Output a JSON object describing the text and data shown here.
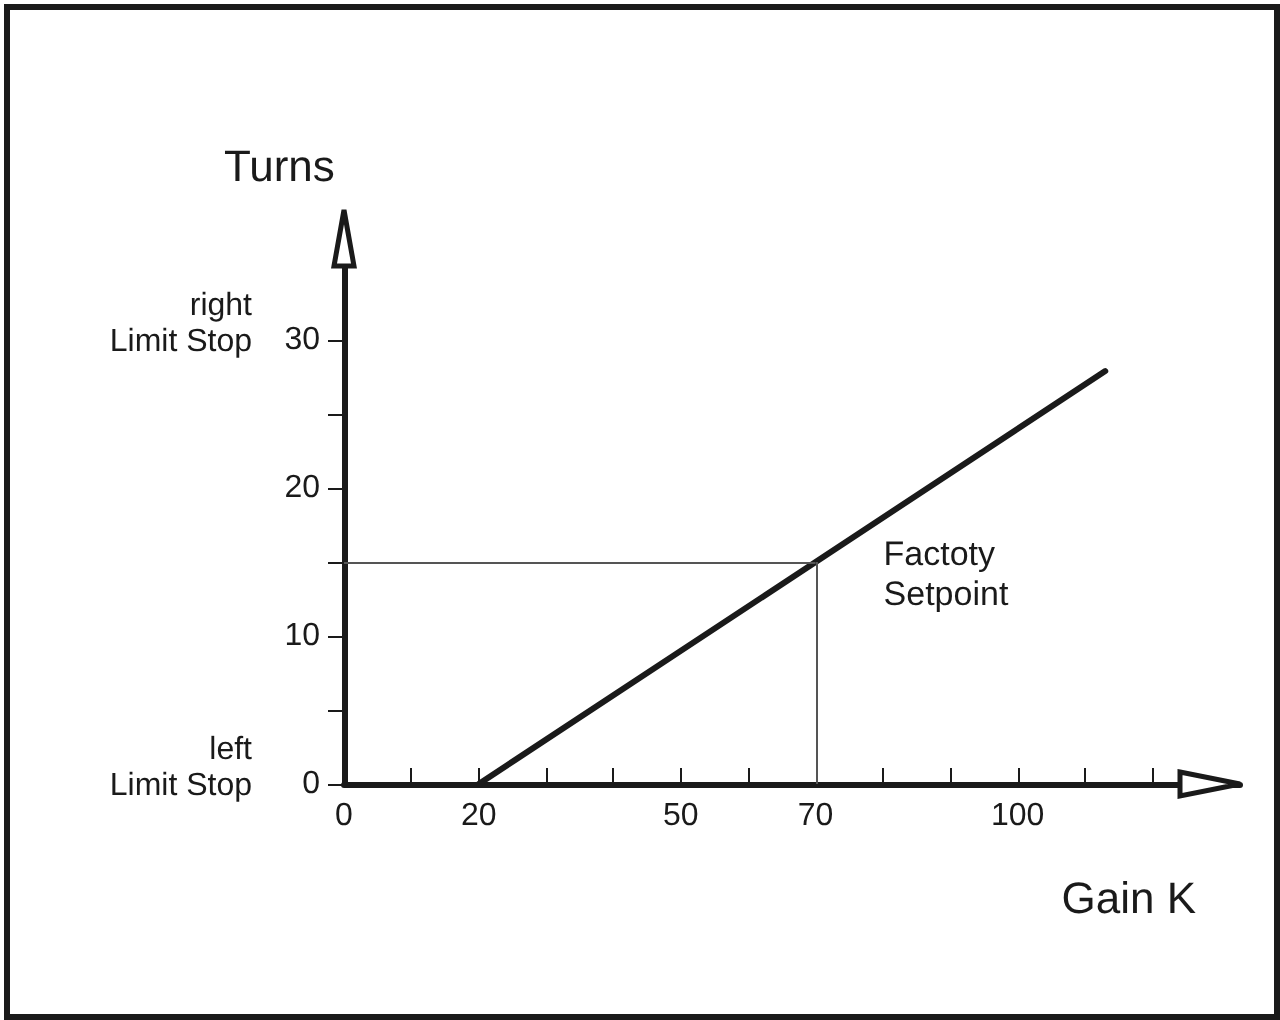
{
  "chart_data": {
    "type": "line",
    "xlabel": "Gain K",
    "ylabel": "Turns",
    "x": [
      20,
      113
    ],
    "values": [
      0,
      27.9
    ],
    "color": "#1a1a1a",
    "marker": "none",
    "line_style": "solid",
    "grid": false,
    "xlim": [
      0,
      133
    ],
    "ylim": [
      0,
      35
    ],
    "xticks": [
      0,
      {
        "value": 10,
        "label": null
      },
      20,
      {
        "value": 30,
        "label": null
      },
      {
        "value": 40,
        "label": null
      },
      50,
      {
        "value": 60,
        "label": null
      },
      70,
      {
        "value": 80,
        "label": null
      },
      {
        "value": 90,
        "label": null
      },
      100,
      {
        "value": 110,
        "label": null
      },
      {
        "value": 120,
        "label": null
      }
    ],
    "yticks": [
      0,
      {
        "value": 5,
        "label": null
      },
      10,
      {
        "value": 15,
        "label": null
      },
      20,
      {
        "value": 25,
        "label": null
      },
      30
    ],
    "ref_lines": [
      {
        "axis": "y",
        "value": 15,
        "color": "#555555"
      },
      {
        "axis": "x",
        "value": 70,
        "color": "#555555"
      }
    ],
    "annotations": [
      {
        "text": "Factoty\nSetpoint",
        "x": 70,
        "y": 15
      },
      "right\nLimit Stop",
      "left\nLimit Stop"
    ]
  }
}
